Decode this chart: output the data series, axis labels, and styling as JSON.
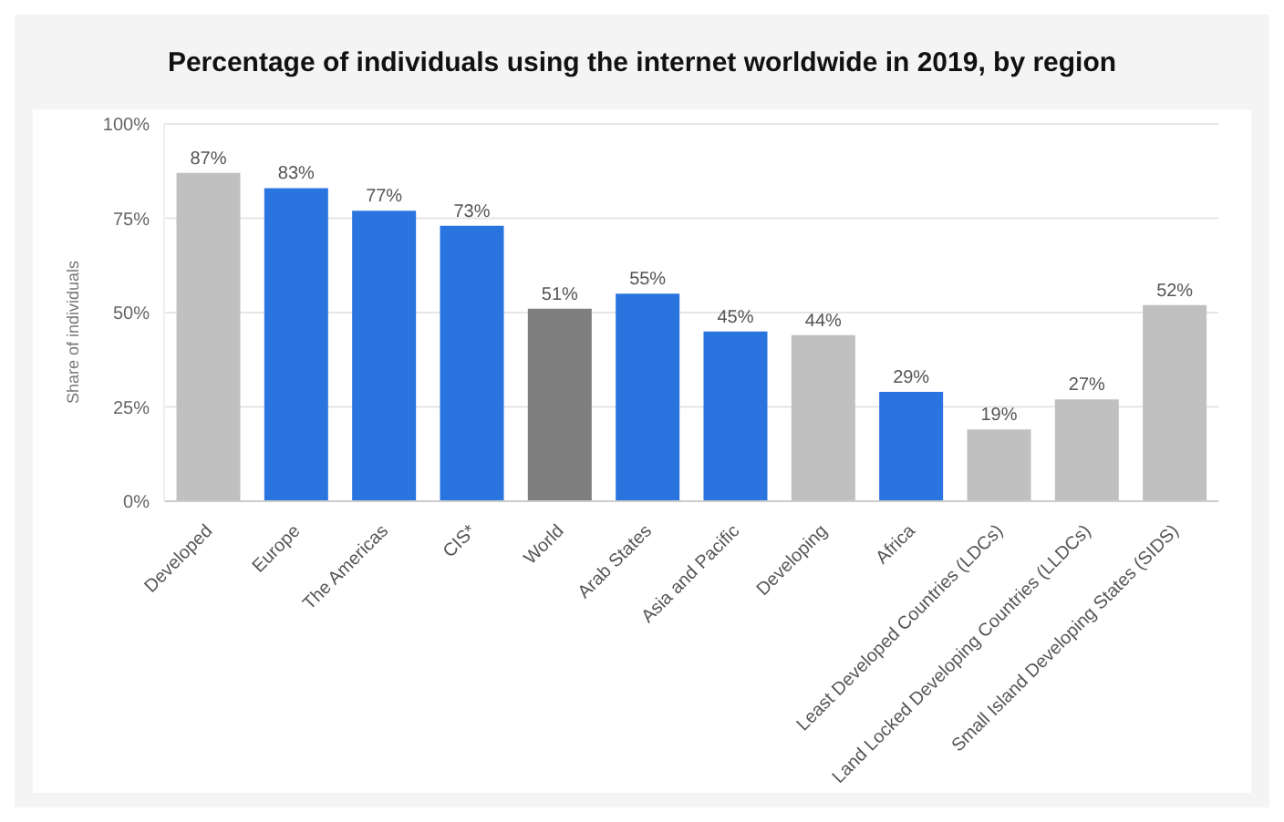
{
  "chart_data": {
    "type": "bar",
    "title": "Percentage of individuals using the internet worldwide in 2019, by region",
    "ylabel": "Share of individuals",
    "categories": [
      "Developed",
      "Europe",
      "The Americas",
      "CIS*",
      "World",
      "Arab States",
      "Asia and Pacific",
      "Developing",
      "Africa",
      "Least Developed Countries (LDCs)",
      "Land Locked Developing Countries (LLDCs)",
      "Small Island Developing States (SIDS)"
    ],
    "values": [
      87,
      83,
      77,
      73,
      51,
      55,
      45,
      44,
      29,
      19,
      27,
      52
    ],
    "colors": [
      "#c0c0c0",
      "#2a74e0",
      "#2a74e0",
      "#2a74e0",
      "#7f7f7f",
      "#2a74e0",
      "#2a74e0",
      "#c0c0c0",
      "#2a74e0",
      "#c0c0c0",
      "#c0c0c0",
      "#c0c0c0"
    ],
    "value_labels": [
      "87%",
      "83%",
      "77%",
      "73%",
      "51%",
      "55%",
      "45%",
      "44%",
      "29%",
      "19%",
      "27%",
      "52%"
    ],
    "ylim": [
      0,
      100
    ],
    "yticks": [
      {
        "value": 0,
        "label": "0%"
      },
      {
        "value": 25,
        "label": "25%"
      },
      {
        "value": 50,
        "label": "50%"
      },
      {
        "value": 75,
        "label": "75%"
      },
      {
        "value": 100,
        "label": "100%"
      }
    ],
    "grid": "y"
  }
}
